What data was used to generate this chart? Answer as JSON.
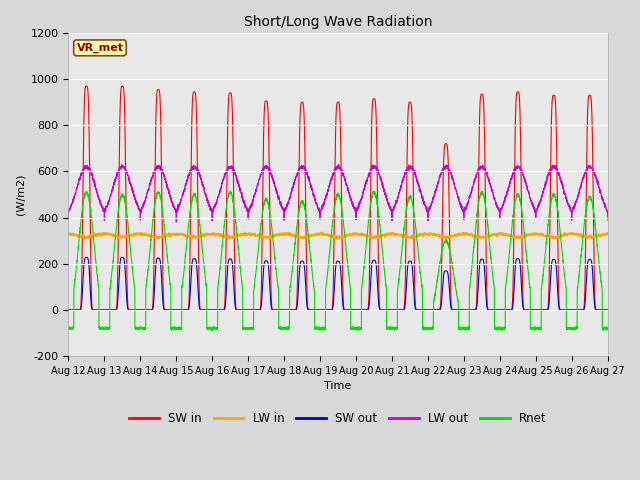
{
  "title": "Short/Long Wave Radiation",
  "xlabel": "Time",
  "ylabel": "(W/m2)",
  "ylim": [
    -200,
    1200
  ],
  "yticks": [
    -200,
    0,
    200,
    400,
    600,
    800,
    1000,
    1200
  ],
  "start_day": 12,
  "end_day": 27,
  "annotation": "VR_met",
  "legend": [
    "SW in",
    "LW in",
    "SW out",
    "LW out",
    "Rnet"
  ],
  "colors": {
    "SW in": "#ff0000",
    "LW in": "#ffa500",
    "SW out": "#0000cd",
    "LW out": "#cc00cc",
    "Rnet": "#00dd00"
  },
  "bg_color": "#d8d8d8",
  "plot_bg_color": "#e8e8e8",
  "SW_in_peaks": [
    970,
    970,
    955,
    945,
    940,
    905,
    900,
    900,
    915,
    900,
    720,
    935,
    945,
    930,
    930
  ],
  "LW_in_base": 330,
  "SW_out_peak_ratio": 0.235,
  "LW_out_base": 390,
  "LW_out_day_peak": 620,
  "Rnet_day_peaks": [
    510,
    500,
    510,
    500,
    510,
    480,
    470,
    500,
    510,
    490,
    300,
    510,
    500,
    500,
    490
  ],
  "Rnet_night": -80
}
